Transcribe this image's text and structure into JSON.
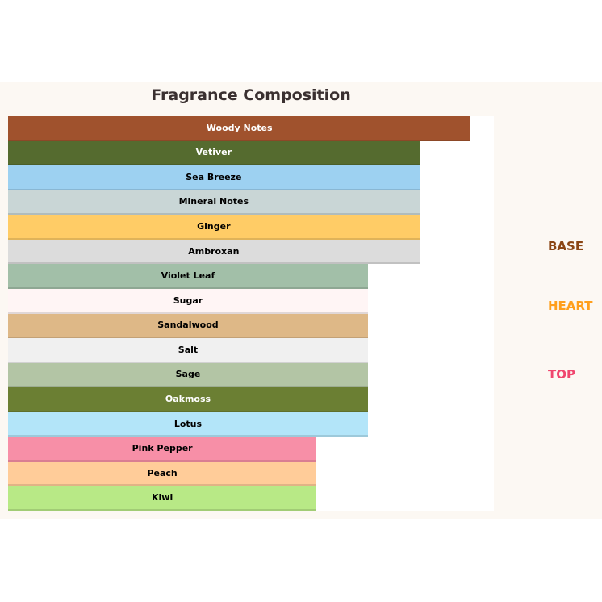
{
  "chart_data": {
    "type": "bar",
    "orientation": "horizontal",
    "title": "Fragrance Composition",
    "xlim": [
      0,
      9.45
    ],
    "grid": false,
    "axes_visible": false,
    "categories": [
      "Woody Notes",
      "Vetiver",
      "Sea Breeze",
      "Mineral Notes",
      "Ginger",
      "Ambroxan",
      "Violet Leaf",
      "Sugar",
      "Sandalwood",
      "Salt",
      "Sage",
      "Oakmoss",
      "Lotus",
      "Pink Pepper",
      "Peach",
      "Kiwi"
    ],
    "values": [
      9,
      8,
      8,
      8,
      8,
      8,
      7,
      7,
      7,
      7,
      7,
      7,
      7,
      6,
      6,
      6
    ],
    "colors": [
      "#a0522d",
      "#556b2f",
      "#9dd1f1",
      "#c9d6d6",
      "#ffcc66",
      "#dcdcdc",
      "#a2bfa8",
      "#fff5f5",
      "#deb887",
      "#f0f0f0",
      "#b3c5a5",
      "#6b7f33",
      "#b3e5f9",
      "#f78fa7",
      "#ffcc99",
      "#b8e986"
    ],
    "label_colors": [
      "#ffffff",
      "#ffffff",
      "#000000",
      "#000000",
      "#000000",
      "#000000",
      "#000000",
      "#000000",
      "#000000",
      "#000000",
      "#000000",
      "#ffffff",
      "#000000",
      "#000000",
      "#000000",
      "#000000"
    ],
    "annotations": [
      {
        "text": "BASE",
        "color": "#8b4513"
      },
      {
        "text": "HEART",
        "color": "#ff9f1c"
      },
      {
        "text": "TOP",
        "color": "#f0466e"
      }
    ]
  }
}
